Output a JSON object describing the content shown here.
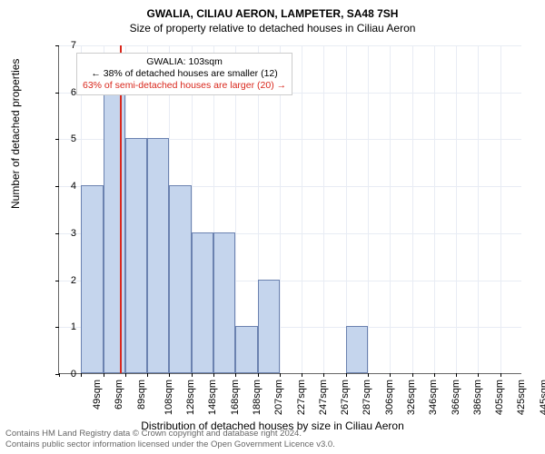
{
  "title_main": "GWALIA, CILIAU AERON, LAMPETER, SA48 7SH",
  "title_sub": "Size of property relative to detached houses in Ciliau Aeron",
  "ylabel": "Number of detached properties",
  "xlabel": "Distribution of detached houses by size in Ciliau Aeron",
  "chart": {
    "type": "histogram",
    "bar_fill": "#c5d5ed",
    "bar_border": "#6b82b0",
    "grid_color": "#e8ecf4",
    "axis_color": "#666666",
    "ref_line_color": "#d9271c",
    "background": "#ffffff",
    "ylim": [
      0,
      7
    ],
    "ytick_step": 1,
    "categories": [
      "49sqm",
      "69sqm",
      "89sqm",
      "108sqm",
      "128sqm",
      "148sqm",
      "168sqm",
      "188sqm",
      "207sqm",
      "227sqm",
      "247sqm",
      "267sqm",
      "287sqm",
      "306sqm",
      "326sqm",
      "346sqm",
      "366sqm",
      "386sqm",
      "405sqm",
      "425sqm",
      "445sqm"
    ],
    "values": [
      0,
      4,
      6,
      5,
      5,
      4,
      3,
      3,
      1,
      2,
      0,
      0,
      0,
      1,
      0,
      0,
      0,
      0,
      0,
      0,
      0
    ],
    "ref_index": 2.75,
    "tick_fontsize": 11,
    "label_fontsize": 12,
    "title_fontsize": 12
  },
  "annotation": {
    "line1": "GWALIA: 103sqm",
    "line2": "← 38% of detached houses are smaller (12)",
    "line3": "63% of semi-detached houses are larger (20) →",
    "line3_color": "#d9271c",
    "border": "#cccccc"
  },
  "footer": {
    "line1": "Contains HM Land Registry data © Crown copyright and database right 2024.",
    "line2": "Contains public sector information licensed under the Open Government Licence v3.0.",
    "color": "#666666"
  }
}
